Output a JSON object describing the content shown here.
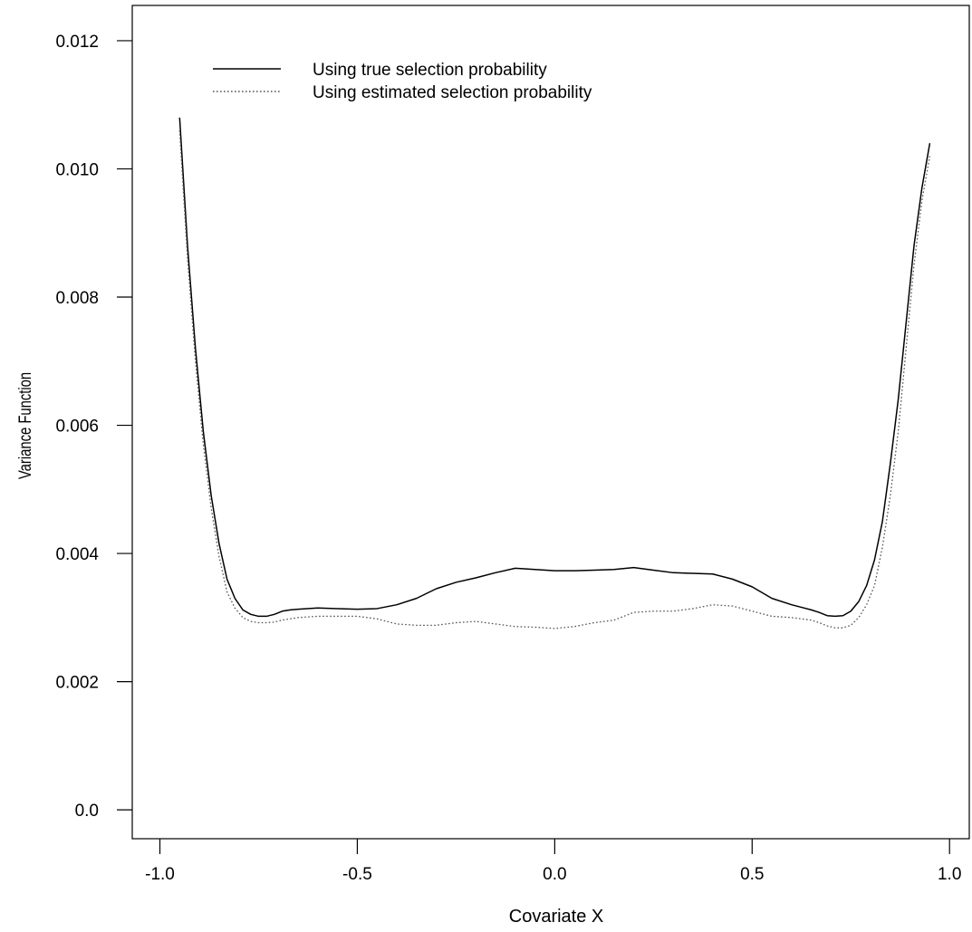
{
  "chart_data": {
    "type": "line",
    "title": "",
    "xlabel": "Covariate X",
    "ylabel": "Variance Function",
    "xlim": [
      -1.07,
      1.05
    ],
    "ylim": [
      -0.00045,
      0.01255
    ],
    "grid": false,
    "legend": {
      "position": "top-left"
    },
    "x_ticks": [
      -1.0,
      -0.5,
      0.0,
      0.5,
      1.0
    ],
    "x_tick_labels": [
      "-1.0",
      "-0.5",
      "0.0",
      "0.5",
      "1.0"
    ],
    "y_ticks": [
      0.0,
      0.002,
      0.004,
      0.006,
      0.008,
      0.01,
      0.012
    ],
    "y_tick_labels": [
      "0.0",
      "0.002",
      "0.004",
      "0.006",
      "0.008",
      "0.010",
      "0.012"
    ],
    "series": [
      {
        "name": "Using true selection probability",
        "style": "solid",
        "color": "#000000",
        "x": [
          -0.95,
          -0.93,
          -0.91,
          -0.89,
          -0.87,
          -0.85,
          -0.83,
          -0.81,
          -0.79,
          -0.77,
          -0.75,
          -0.73,
          -0.71,
          -0.69,
          -0.67,
          -0.65,
          -0.6,
          -0.55,
          -0.5,
          -0.45,
          -0.4,
          -0.35,
          -0.3,
          -0.25,
          -0.2,
          -0.15,
          -0.1,
          -0.05,
          0.0,
          0.05,
          0.1,
          0.15,
          0.2,
          0.25,
          0.3,
          0.35,
          0.4,
          0.45,
          0.5,
          0.55,
          0.6,
          0.65,
          0.67,
          0.69,
          0.71,
          0.73,
          0.75,
          0.77,
          0.79,
          0.81,
          0.83,
          0.85,
          0.87,
          0.89,
          0.91,
          0.93,
          0.95
        ],
        "y": [
          0.0108,
          0.0088,
          0.0072,
          0.0059,
          0.0049,
          0.00415,
          0.0036,
          0.0033,
          0.00312,
          0.00305,
          0.00302,
          0.00302,
          0.00305,
          0.0031,
          0.00312,
          0.00313,
          0.00315,
          0.00314,
          0.00313,
          0.00314,
          0.0032,
          0.0033,
          0.00345,
          0.00355,
          0.00362,
          0.0037,
          0.00377,
          0.00375,
          0.00373,
          0.00373,
          0.00374,
          0.00375,
          0.00378,
          0.00374,
          0.0037,
          0.00369,
          0.00368,
          0.0036,
          0.00348,
          0.0033,
          0.0032,
          0.00312,
          0.00308,
          0.00303,
          0.00302,
          0.00303,
          0.0031,
          0.00325,
          0.0035,
          0.0039,
          0.0045,
          0.0054,
          0.0064,
          0.0076,
          0.0088,
          0.0097,
          0.0104
        ]
      },
      {
        "name": "Using estimated selection probability",
        "style": "dotted",
        "color": "#555555",
        "x": [
          -0.95,
          -0.93,
          -0.91,
          -0.89,
          -0.87,
          -0.85,
          -0.83,
          -0.81,
          -0.79,
          -0.77,
          -0.75,
          -0.73,
          -0.71,
          -0.69,
          -0.67,
          -0.65,
          -0.6,
          -0.55,
          -0.5,
          -0.45,
          -0.4,
          -0.35,
          -0.3,
          -0.25,
          -0.2,
          -0.15,
          -0.1,
          -0.05,
          0.0,
          0.05,
          0.1,
          0.15,
          0.2,
          0.25,
          0.3,
          0.35,
          0.4,
          0.45,
          0.5,
          0.55,
          0.6,
          0.65,
          0.67,
          0.69,
          0.71,
          0.73,
          0.75,
          0.77,
          0.79,
          0.81,
          0.83,
          0.85,
          0.87,
          0.89,
          0.91,
          0.93,
          0.95
        ],
        "y": [
          0.0106,
          0.0086,
          0.007,
          0.0057,
          0.0047,
          0.00395,
          0.0034,
          0.00315,
          0.003,
          0.00294,
          0.00292,
          0.00292,
          0.00293,
          0.00296,
          0.00298,
          0.003,
          0.00302,
          0.00302,
          0.00302,
          0.00298,
          0.0029,
          0.00288,
          0.00288,
          0.00292,
          0.00294,
          0.0029,
          0.00286,
          0.00285,
          0.00283,
          0.00286,
          0.00292,
          0.00296,
          0.00308,
          0.0031,
          0.0031,
          0.00314,
          0.0032,
          0.00318,
          0.0031,
          0.00302,
          0.003,
          0.00296,
          0.00292,
          0.00287,
          0.00284,
          0.00284,
          0.00288,
          0.003,
          0.0032,
          0.0035,
          0.0041,
          0.0049,
          0.0059,
          0.0072,
          0.0085,
          0.0095,
          0.0102
        ]
      }
    ]
  }
}
